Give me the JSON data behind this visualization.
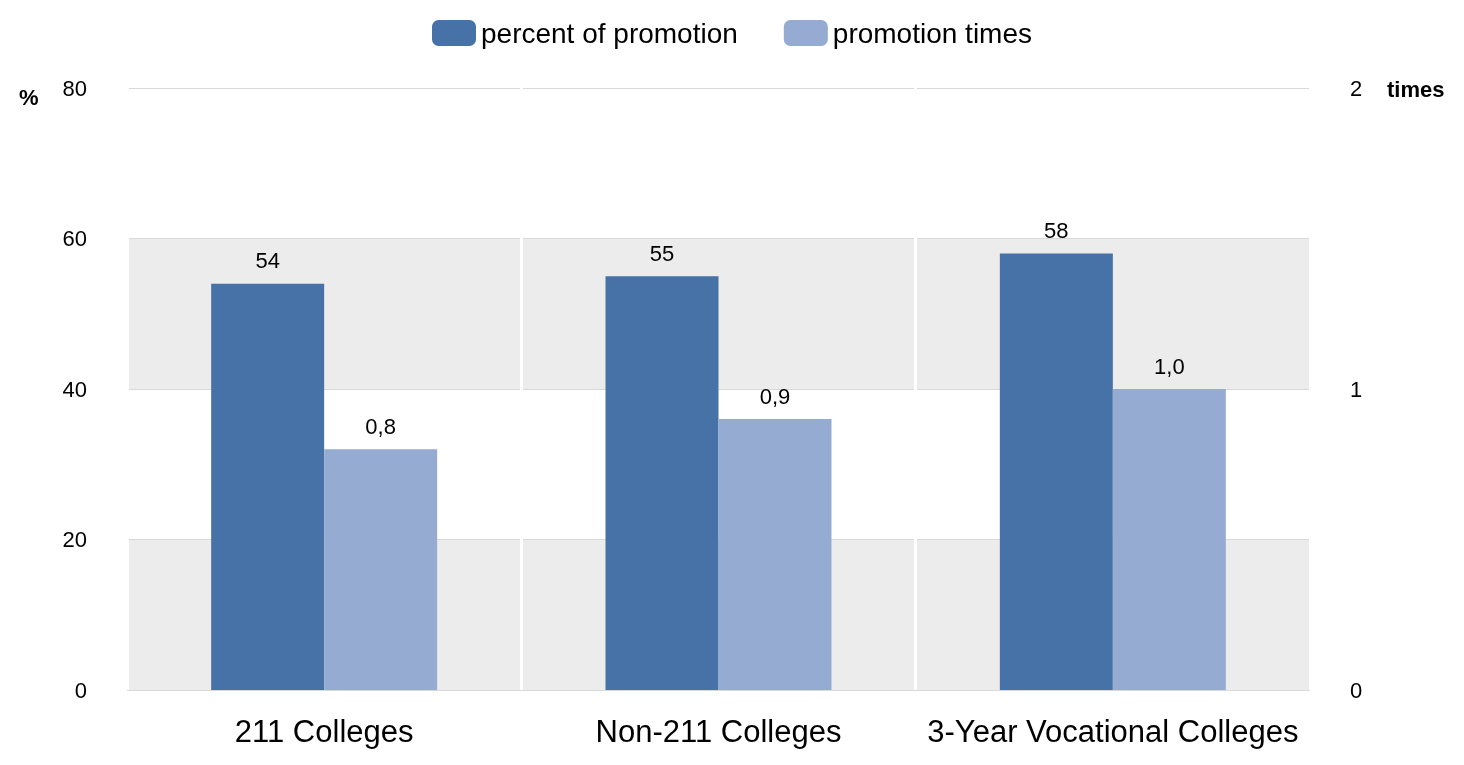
{
  "chart_data": {
    "type": "bar",
    "categories": [
      "211 Colleges",
      "Non-211 Colleges",
      "3-Year Vocational Colleges"
    ],
    "series": [
      {
        "name": "percent of promotion",
        "color": "#4672a8",
        "values": [
          54,
          55,
          58
        ],
        "value_labels": [
          "54",
          "55",
          "58"
        ]
      },
      {
        "name": "promotion times",
        "color": "#95abd2",
        "values": [
          0.8,
          0.9,
          1.0
        ],
        "axis": "y2",
        "value_labels": [
          "0,8",
          "0,9",
          "1,0"
        ]
      }
    ],
    "ylabel": "%",
    "y2label": "times",
    "ylim": [
      0,
      80
    ],
    "yticks": [
      0,
      20,
      40,
      60,
      80
    ],
    "y2lim": [
      0,
      2
    ],
    "y2ticks": [
      0,
      1,
      2
    ],
    "grid": "y",
    "legend": "top"
  }
}
